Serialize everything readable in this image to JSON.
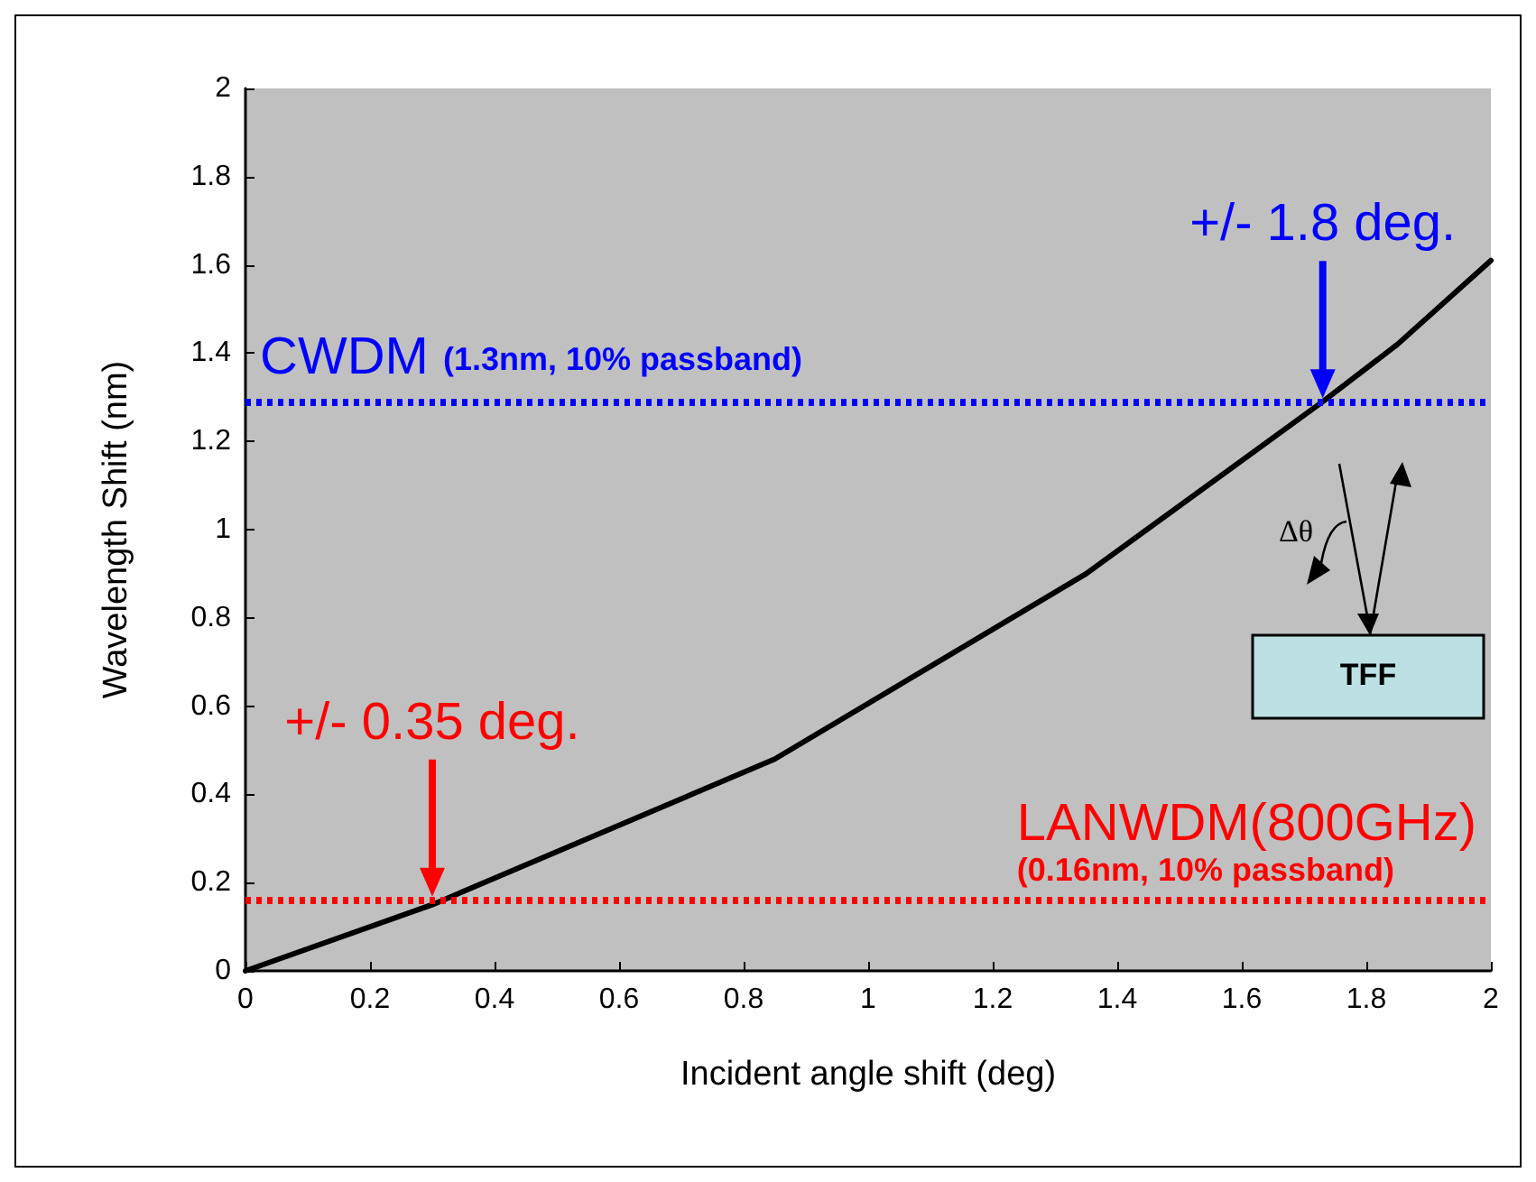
{
  "chart_data": {
    "type": "line",
    "xlabel": "Incident angle shift (deg)",
    "ylabel": "Wavelength Shift (nm)",
    "x": [
      0,
      0.3,
      0.85,
      1.35,
      1.73,
      1.85,
      2
    ],
    "series": [
      {
        "color": "#000000",
        "values": [
          0,
          0.15,
          0.48,
          0.9,
          1.29,
          1.42,
          1.61
        ]
      }
    ],
    "xlim": [
      0,
      2
    ],
    "ylim": [
      0,
      2
    ],
    "xticks": [
      0,
      0.2,
      0.4,
      0.6,
      0.8,
      1,
      1.2,
      1.4,
      1.6,
      1.8,
      2
    ],
    "yticks": [
      0,
      0.2,
      0.4,
      0.6,
      0.8,
      1,
      1.2,
      1.4,
      1.6,
      1.8,
      2
    ],
    "ref_lines": [
      {
        "axis": "y",
        "value": 1.29,
        "label": "CWDM (1.3nm, 10% passband)",
        "color": "#0000ff",
        "line_style": "dotted"
      },
      {
        "axis": "y",
        "value": 0.16,
        "label": "LANWDM(800GHz)\n(0.16nm, 10% passband)",
        "color": "#ff0000",
        "line_style": "dotted"
      }
    ],
    "annotations": [
      {
        "text": "+/- 1.8 deg.",
        "x": 1.73,
        "y": 1.29
      },
      {
        "text": "+/- 0.35 deg.",
        "x": 0.3,
        "y": 0.16
      },
      "Δθ",
      "TFF"
    ],
    "grid": false,
    "marker": "none",
    "line_style": "solid"
  }
}
